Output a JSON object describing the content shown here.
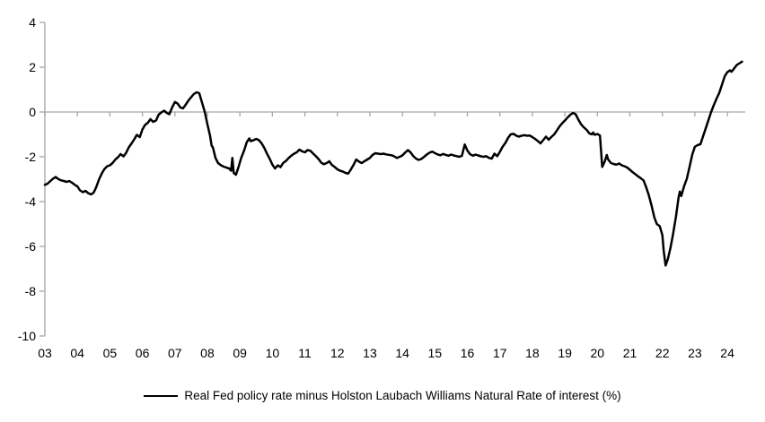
{
  "colors": {
    "line": "#000000",
    "axis": "#a6a6a6",
    "background": "#ffffff",
    "text": "#000000"
  },
  "legend": {
    "label": "Real Fed policy rate minus Holston Laubach Williams Natural Rate of interest (%)"
  },
  "chart_data": {
    "type": "line",
    "title": "",
    "xlabel": "",
    "ylabel": "",
    "grid": "zero-line-only",
    "legend_position": "bottom",
    "ylim": [
      -10,
      4
    ],
    "xlim": [
      2003,
      2024.55
    ],
    "y_ticks": [
      4,
      2,
      0,
      -2,
      -4,
      -6,
      -8,
      -10
    ],
    "y_tick_labels": [
      "4",
      "2",
      "0",
      "-2",
      "-4",
      "-6",
      "-8",
      "-10"
    ],
    "x_tick_years": [
      2003,
      2004,
      2005,
      2006,
      2007,
      2008,
      2009,
      2010,
      2011,
      2012,
      2013,
      2014,
      2015,
      2016,
      2017,
      2018,
      2019,
      2020,
      2021,
      2022,
      2023,
      2024
    ],
    "x_tick_labels": [
      "03",
      "04",
      "05",
      "06",
      "07",
      "08",
      "09",
      "10",
      "11",
      "12",
      "13",
      "14",
      "15",
      "16",
      "17",
      "18",
      "19",
      "20",
      "21",
      "22",
      "23",
      "24"
    ],
    "series": [
      {
        "name": "Real Fed policy rate minus Holston Laubach Williams Natural Rate of interest (%)",
        "color": "#000000",
        "points": [
          [
            2003.0,
            -3.25
          ],
          [
            2003.08,
            -3.2
          ],
          [
            2003.17,
            -3.08
          ],
          [
            2003.25,
            -2.98
          ],
          [
            2003.33,
            -2.9
          ],
          [
            2003.42,
            -3.0
          ],
          [
            2003.5,
            -3.05
          ],
          [
            2003.58,
            -3.08
          ],
          [
            2003.67,
            -3.12
          ],
          [
            2003.75,
            -3.08
          ],
          [
            2003.83,
            -3.15
          ],
          [
            2003.92,
            -3.25
          ],
          [
            2004.0,
            -3.32
          ],
          [
            2004.08,
            -3.5
          ],
          [
            2004.17,
            -3.58
          ],
          [
            2004.25,
            -3.52
          ],
          [
            2004.33,
            -3.62
          ],
          [
            2004.42,
            -3.68
          ],
          [
            2004.5,
            -3.6
          ],
          [
            2004.58,
            -3.35
          ],
          [
            2004.67,
            -3.0
          ],
          [
            2004.75,
            -2.75
          ],
          [
            2004.83,
            -2.55
          ],
          [
            2004.92,
            -2.42
          ],
          [
            2005.0,
            -2.38
          ],
          [
            2005.08,
            -2.28
          ],
          [
            2005.17,
            -2.12
          ],
          [
            2005.25,
            -2.02
          ],
          [
            2005.33,
            -1.88
          ],
          [
            2005.42,
            -1.98
          ],
          [
            2005.5,
            -1.82
          ],
          [
            2005.58,
            -1.58
          ],
          [
            2005.67,
            -1.4
          ],
          [
            2005.75,
            -1.22
          ],
          [
            2005.83,
            -1.02
          ],
          [
            2005.92,
            -1.12
          ],
          [
            2006.0,
            -0.78
          ],
          [
            2006.08,
            -0.58
          ],
          [
            2006.17,
            -0.48
          ],
          [
            2006.25,
            -0.32
          ],
          [
            2006.33,
            -0.44
          ],
          [
            2006.42,
            -0.38
          ],
          [
            2006.5,
            -0.12
          ],
          [
            2006.58,
            -0.02
          ],
          [
            2006.67,
            0.06
          ],
          [
            2006.75,
            -0.04
          ],
          [
            2006.83,
            -0.1
          ],
          [
            2006.92,
            0.22
          ],
          [
            2007.0,
            0.45
          ],
          [
            2007.08,
            0.38
          ],
          [
            2007.17,
            0.2
          ],
          [
            2007.25,
            0.16
          ],
          [
            2007.33,
            0.32
          ],
          [
            2007.42,
            0.52
          ],
          [
            2007.5,
            0.66
          ],
          [
            2007.58,
            0.8
          ],
          [
            2007.67,
            0.88
          ],
          [
            2007.75,
            0.84
          ],
          [
            2007.83,
            0.45
          ],
          [
            2007.92,
            0.0
          ],
          [
            2008.0,
            -0.55
          ],
          [
            2008.08,
            -1.05
          ],
          [
            2008.13,
            -1.5
          ],
          [
            2008.17,
            -1.58
          ],
          [
            2008.25,
            -2.05
          ],
          [
            2008.33,
            -2.28
          ],
          [
            2008.42,
            -2.38
          ],
          [
            2008.5,
            -2.44
          ],
          [
            2008.58,
            -2.48
          ],
          [
            2008.67,
            -2.52
          ],
          [
            2008.73,
            -2.62
          ],
          [
            2008.77,
            -2.05
          ],
          [
            2008.81,
            -2.72
          ],
          [
            2008.88,
            -2.8
          ],
          [
            2008.96,
            -2.45
          ],
          [
            2009.04,
            -2.05
          ],
          [
            2009.13,
            -1.72
          ],
          [
            2009.21,
            -1.35
          ],
          [
            2009.29,
            -1.18
          ],
          [
            2009.33,
            -1.3
          ],
          [
            2009.42,
            -1.26
          ],
          [
            2009.5,
            -1.2
          ],
          [
            2009.58,
            -1.25
          ],
          [
            2009.67,
            -1.4
          ],
          [
            2009.75,
            -1.6
          ],
          [
            2009.83,
            -1.85
          ],
          [
            2009.92,
            -2.1
          ],
          [
            2010.0,
            -2.35
          ],
          [
            2010.08,
            -2.52
          ],
          [
            2010.17,
            -2.38
          ],
          [
            2010.25,
            -2.46
          ],
          [
            2010.33,
            -2.28
          ],
          [
            2010.42,
            -2.18
          ],
          [
            2010.5,
            -2.05
          ],
          [
            2010.58,
            -1.95
          ],
          [
            2010.67,
            -1.86
          ],
          [
            2010.75,
            -1.8
          ],
          [
            2010.83,
            -1.68
          ],
          [
            2010.92,
            -1.76
          ],
          [
            2011.0,
            -1.8
          ],
          [
            2011.08,
            -1.7
          ],
          [
            2011.17,
            -1.73
          ],
          [
            2011.25,
            -1.85
          ],
          [
            2011.33,
            -1.96
          ],
          [
            2011.42,
            -2.1
          ],
          [
            2011.5,
            -2.26
          ],
          [
            2011.58,
            -2.33
          ],
          [
            2011.67,
            -2.28
          ],
          [
            2011.75,
            -2.2
          ],
          [
            2011.83,
            -2.36
          ],
          [
            2011.92,
            -2.46
          ],
          [
            2012.0,
            -2.56
          ],
          [
            2012.08,
            -2.62
          ],
          [
            2012.17,
            -2.66
          ],
          [
            2012.25,
            -2.72
          ],
          [
            2012.33,
            -2.75
          ],
          [
            2012.42,
            -2.55
          ],
          [
            2012.5,
            -2.35
          ],
          [
            2012.58,
            -2.12
          ],
          [
            2012.67,
            -2.22
          ],
          [
            2012.75,
            -2.28
          ],
          [
            2012.83,
            -2.2
          ],
          [
            2012.92,
            -2.12
          ],
          [
            2013.0,
            -2.05
          ],
          [
            2013.08,
            -1.92
          ],
          [
            2013.17,
            -1.84
          ],
          [
            2013.25,
            -1.86
          ],
          [
            2013.33,
            -1.88
          ],
          [
            2013.42,
            -1.86
          ],
          [
            2013.5,
            -1.89
          ],
          [
            2013.58,
            -1.91
          ],
          [
            2013.67,
            -1.93
          ],
          [
            2013.75,
            -1.98
          ],
          [
            2013.83,
            -2.05
          ],
          [
            2013.92,
            -2.0
          ],
          [
            2014.0,
            -1.94
          ],
          [
            2014.08,
            -1.82
          ],
          [
            2014.17,
            -1.7
          ],
          [
            2014.25,
            -1.8
          ],
          [
            2014.33,
            -1.96
          ],
          [
            2014.42,
            -2.08
          ],
          [
            2014.5,
            -2.14
          ],
          [
            2014.58,
            -2.1
          ],
          [
            2014.67,
            -2.0
          ],
          [
            2014.75,
            -1.9
          ],
          [
            2014.83,
            -1.82
          ],
          [
            2014.92,
            -1.77
          ],
          [
            2015.0,
            -1.83
          ],
          [
            2015.08,
            -1.89
          ],
          [
            2015.17,
            -1.93
          ],
          [
            2015.25,
            -1.87
          ],
          [
            2015.33,
            -1.91
          ],
          [
            2015.42,
            -1.95
          ],
          [
            2015.5,
            -1.9
          ],
          [
            2015.58,
            -1.94
          ],
          [
            2015.67,
            -1.97
          ],
          [
            2015.75,
            -2.0
          ],
          [
            2015.83,
            -1.96
          ],
          [
            2015.92,
            -1.45
          ],
          [
            2016.0,
            -1.72
          ],
          [
            2016.08,
            -1.88
          ],
          [
            2016.17,
            -1.95
          ],
          [
            2016.25,
            -1.9
          ],
          [
            2016.33,
            -1.94
          ],
          [
            2016.42,
            -1.98
          ],
          [
            2016.5,
            -2.0
          ],
          [
            2016.58,
            -1.97
          ],
          [
            2016.67,
            -2.05
          ],
          [
            2016.75,
            -2.08
          ],
          [
            2016.83,
            -1.86
          ],
          [
            2016.92,
            -1.97
          ],
          [
            2017.0,
            -1.78
          ],
          [
            2017.08,
            -1.56
          ],
          [
            2017.17,
            -1.38
          ],
          [
            2017.25,
            -1.16
          ],
          [
            2017.33,
            -1.0
          ],
          [
            2017.42,
            -0.97
          ],
          [
            2017.5,
            -1.05
          ],
          [
            2017.58,
            -1.1
          ],
          [
            2017.67,
            -1.06
          ],
          [
            2017.75,
            -1.03
          ],
          [
            2017.83,
            -1.06
          ],
          [
            2017.92,
            -1.05
          ],
          [
            2018.0,
            -1.12
          ],
          [
            2018.08,
            -1.2
          ],
          [
            2018.17,
            -1.3
          ],
          [
            2018.25,
            -1.4
          ],
          [
            2018.33,
            -1.26
          ],
          [
            2018.42,
            -1.1
          ],
          [
            2018.5,
            -1.24
          ],
          [
            2018.58,
            -1.12
          ],
          [
            2018.67,
            -1.0
          ],
          [
            2018.75,
            -0.83
          ],
          [
            2018.83,
            -0.65
          ],
          [
            2018.92,
            -0.5
          ],
          [
            2019.0,
            -0.38
          ],
          [
            2019.08,
            -0.25
          ],
          [
            2019.17,
            -0.12
          ],
          [
            2019.25,
            -0.04
          ],
          [
            2019.33,
            -0.1
          ],
          [
            2019.42,
            -0.35
          ],
          [
            2019.5,
            -0.55
          ],
          [
            2019.58,
            -0.68
          ],
          [
            2019.67,
            -0.8
          ],
          [
            2019.75,
            -0.95
          ],
          [
            2019.83,
            -1.0
          ],
          [
            2019.87,
            -0.92
          ],
          [
            2019.92,
            -1.02
          ],
          [
            2020.0,
            -0.98
          ],
          [
            2020.08,
            -1.05
          ],
          [
            2020.15,
            -2.45
          ],
          [
            2020.23,
            -2.2
          ],
          [
            2020.29,
            -1.92
          ],
          [
            2020.33,
            -2.12
          ],
          [
            2020.42,
            -2.28
          ],
          [
            2020.5,
            -2.32
          ],
          [
            2020.58,
            -2.35
          ],
          [
            2020.67,
            -2.3
          ],
          [
            2020.75,
            -2.38
          ],
          [
            2020.83,
            -2.42
          ],
          [
            2020.92,
            -2.48
          ],
          [
            2021.0,
            -2.58
          ],
          [
            2021.08,
            -2.68
          ],
          [
            2021.17,
            -2.78
          ],
          [
            2021.25,
            -2.87
          ],
          [
            2021.33,
            -2.95
          ],
          [
            2021.42,
            -3.05
          ],
          [
            2021.5,
            -3.35
          ],
          [
            2021.58,
            -3.7
          ],
          [
            2021.67,
            -4.2
          ],
          [
            2021.75,
            -4.7
          ],
          [
            2021.83,
            -5.0
          ],
          [
            2021.92,
            -5.1
          ],
          [
            2022.0,
            -5.5
          ],
          [
            2022.04,
            -6.2
          ],
          [
            2022.1,
            -6.85
          ],
          [
            2022.17,
            -6.55
          ],
          [
            2022.25,
            -6.05
          ],
          [
            2022.33,
            -5.45
          ],
          [
            2022.42,
            -4.65
          ],
          [
            2022.5,
            -3.8
          ],
          [
            2022.54,
            -3.55
          ],
          [
            2022.58,
            -3.75
          ],
          [
            2022.67,
            -3.3
          ],
          [
            2022.75,
            -3.0
          ],
          [
            2022.83,
            -2.5
          ],
          [
            2022.92,
            -1.9
          ],
          [
            2023.0,
            -1.55
          ],
          [
            2023.08,
            -1.48
          ],
          [
            2023.17,
            -1.44
          ],
          [
            2023.25,
            -1.1
          ],
          [
            2023.33,
            -0.75
          ],
          [
            2023.42,
            -0.35
          ],
          [
            2023.5,
            0.0
          ],
          [
            2023.58,
            0.3
          ],
          [
            2023.67,
            0.6
          ],
          [
            2023.75,
            0.85
          ],
          [
            2023.83,
            1.2
          ],
          [
            2023.92,
            1.6
          ],
          [
            2024.0,
            1.78
          ],
          [
            2024.08,
            1.86
          ],
          [
            2024.13,
            1.8
          ],
          [
            2024.21,
            1.95
          ],
          [
            2024.29,
            2.1
          ],
          [
            2024.38,
            2.18
          ],
          [
            2024.45,
            2.25
          ]
        ]
      }
    ]
  }
}
